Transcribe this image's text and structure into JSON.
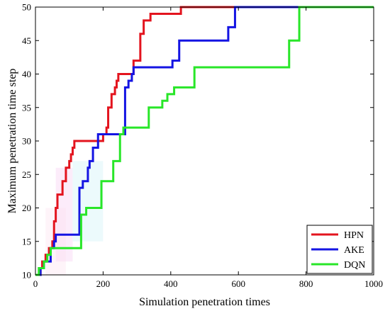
{
  "chart_data": {
    "type": "line",
    "step": true,
    "xlabel": "Simulation penetration times",
    "ylabel": "Maximum penetration time step",
    "xlim": [
      0,
      1000
    ],
    "ylim": [
      10,
      50
    ],
    "xticks": [
      0,
      200,
      400,
      600,
      800,
      1000
    ],
    "yticks": [
      10,
      15,
      20,
      25,
      30,
      35,
      40,
      45,
      50
    ],
    "grid": false,
    "legend_position": "bottom-right",
    "series": [
      {
        "name": "HPN",
        "color": "#e3141e",
        "points": [
          [
            0,
            10
          ],
          [
            15,
            11
          ],
          [
            20,
            12
          ],
          [
            30,
            13
          ],
          [
            40,
            14
          ],
          [
            50,
            15
          ],
          [
            55,
            18
          ],
          [
            60,
            20
          ],
          [
            65,
            22
          ],
          [
            80,
            24
          ],
          [
            90,
            26
          ],
          [
            100,
            27
          ],
          [
            105,
            28
          ],
          [
            110,
            29
          ],
          [
            115,
            30
          ],
          [
            190,
            30
          ],
          [
            200,
            31
          ],
          [
            210,
            32
          ],
          [
            215,
            35
          ],
          [
            225,
            37
          ],
          [
            235,
            38
          ],
          [
            240,
            39
          ],
          [
            245,
            40
          ],
          [
            280,
            40
          ],
          [
            290,
            42
          ],
          [
            310,
            46
          ],
          [
            320,
            48
          ],
          [
            340,
            49
          ],
          [
            370,
            49
          ],
          [
            380,
            49
          ],
          [
            430,
            50
          ],
          [
            1000,
            50
          ]
        ]
      },
      {
        "name": "AKE",
        "color": "#1414e3",
        "points": [
          [
            0,
            10
          ],
          [
            15,
            11
          ],
          [
            25,
            12
          ],
          [
            45,
            14
          ],
          [
            55,
            15
          ],
          [
            60,
            16
          ],
          [
            120,
            16
          ],
          [
            130,
            23
          ],
          [
            140,
            24
          ],
          [
            155,
            26
          ],
          [
            160,
            27
          ],
          [
            170,
            29
          ],
          [
            185,
            31
          ],
          [
            215,
            31
          ],
          [
            260,
            31
          ],
          [
            265,
            38
          ],
          [
            275,
            39
          ],
          [
            285,
            40
          ],
          [
            290,
            41
          ],
          [
            400,
            41
          ],
          [
            405,
            42
          ],
          [
            425,
            45
          ],
          [
            560,
            45
          ],
          [
            570,
            47
          ],
          [
            590,
            50
          ],
          [
            1000,
            50
          ]
        ]
      },
      {
        "name": "DQN",
        "color": "#28e628",
        "points": [
          [
            0,
            10
          ],
          [
            10,
            11
          ],
          [
            25,
            12
          ],
          [
            35,
            13
          ],
          [
            45,
            14
          ],
          [
            60,
            14
          ],
          [
            125,
            14
          ],
          [
            135,
            19
          ],
          [
            150,
            20
          ],
          [
            185,
            20
          ],
          [
            195,
            24
          ],
          [
            220,
            24
          ],
          [
            230,
            27
          ],
          [
            250,
            31
          ],
          [
            260,
            32
          ],
          [
            330,
            32
          ],
          [
            335,
            35
          ],
          [
            370,
            35
          ],
          [
            375,
            36
          ],
          [
            390,
            37
          ],
          [
            410,
            38
          ],
          [
            465,
            38
          ],
          [
            470,
            41
          ],
          [
            745,
            41
          ],
          [
            750,
            45
          ],
          [
            775,
            45
          ],
          [
            780,
            50
          ],
          [
            1000,
            50
          ]
        ]
      }
    ]
  }
}
